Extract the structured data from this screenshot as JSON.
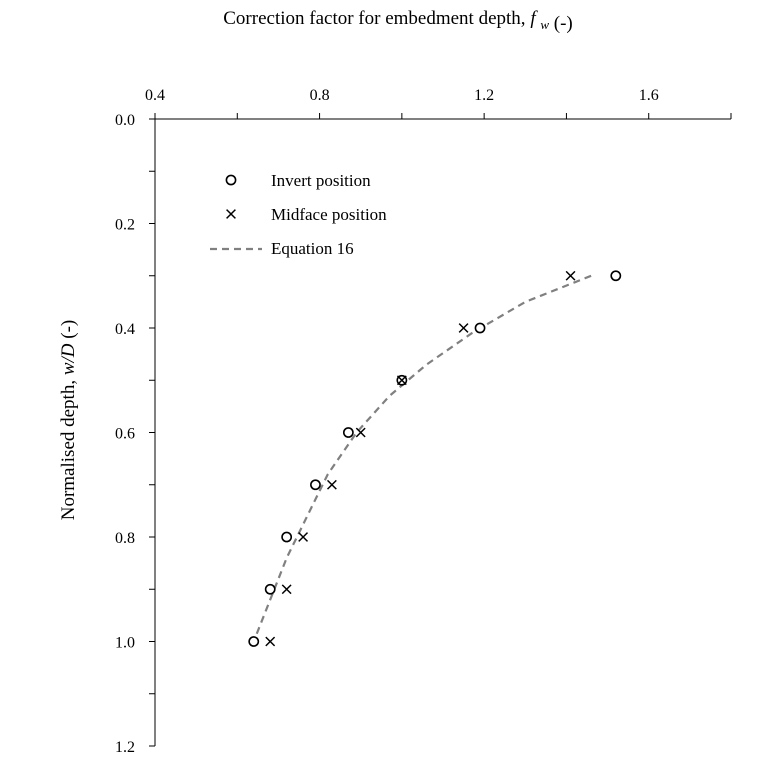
{
  "chart_data": {
    "type": "scatter",
    "xlabel": "Correction factor for embedment depth,",
    "xlabel_symbol": "f",
    "xlabel_subscript": "w",
    "xlabel_unit": "(-)",
    "ylabel": "Normalised depth,",
    "ylabel_symbol": "w/D",
    "ylabel_unit": "(-)",
    "x_axis_position": "top",
    "y_axis_inverted": true,
    "xlim": [
      0.4,
      1.8
    ],
    "ylim": [
      0.0,
      1.2
    ],
    "x_ticks": [
      0.4,
      0.8,
      1.2,
      1.6
    ],
    "x_tick_labels": [
      "0.4",
      "0.8",
      "1.2",
      "1.6"
    ],
    "y_ticks": [
      0.0,
      0.2,
      0.4,
      0.6,
      0.8,
      1.0,
      1.2
    ],
    "y_tick_labels": [
      "0.0",
      "0.2",
      "0.4",
      "0.6",
      "0.8",
      "1.0",
      "1.2"
    ],
    "grid": false,
    "legend_position": "top-left",
    "series": [
      {
        "name": "Invert position",
        "marker": "circle",
        "color": "#000000",
        "points": [
          {
            "x": 1.52,
            "y": 0.3
          },
          {
            "x": 1.19,
            "y": 0.4
          },
          {
            "x": 1.0,
            "y": 0.5
          },
          {
            "x": 0.87,
            "y": 0.6
          },
          {
            "x": 0.79,
            "y": 0.7
          },
          {
            "x": 0.72,
            "y": 0.8
          },
          {
            "x": 0.68,
            "y": 0.9
          },
          {
            "x": 0.64,
            "y": 1.0
          }
        ]
      },
      {
        "name": "Midface position",
        "marker": "cross",
        "color": "#000000",
        "points": [
          {
            "x": 1.41,
            "y": 0.3
          },
          {
            "x": 1.15,
            "y": 0.4
          },
          {
            "x": 1.0,
            "y": 0.5
          },
          {
            "x": 0.9,
            "y": 0.6
          },
          {
            "x": 0.83,
            "y": 0.7
          },
          {
            "x": 0.76,
            "y": 0.8
          },
          {
            "x": 0.72,
            "y": 0.9
          },
          {
            "x": 0.68,
            "y": 1.0
          }
        ]
      },
      {
        "name": "Equation 16",
        "marker": "dashed-line",
        "color": "#808080",
        "points": [
          {
            "x": 1.46,
            "y": 0.3
          },
          {
            "x": 1.3,
            "y": 0.35
          },
          {
            "x": 1.17,
            "y": 0.41
          },
          {
            "x": 1.06,
            "y": 0.47
          },
          {
            "x": 0.97,
            "y": 0.53
          },
          {
            "x": 0.89,
            "y": 0.6
          },
          {
            "x": 0.82,
            "y": 0.68
          },
          {
            "x": 0.77,
            "y": 0.76
          },
          {
            "x": 0.72,
            "y": 0.84
          },
          {
            "x": 0.68,
            "y": 0.92
          },
          {
            "x": 0.64,
            "y": 1.0
          }
        ]
      }
    ]
  }
}
